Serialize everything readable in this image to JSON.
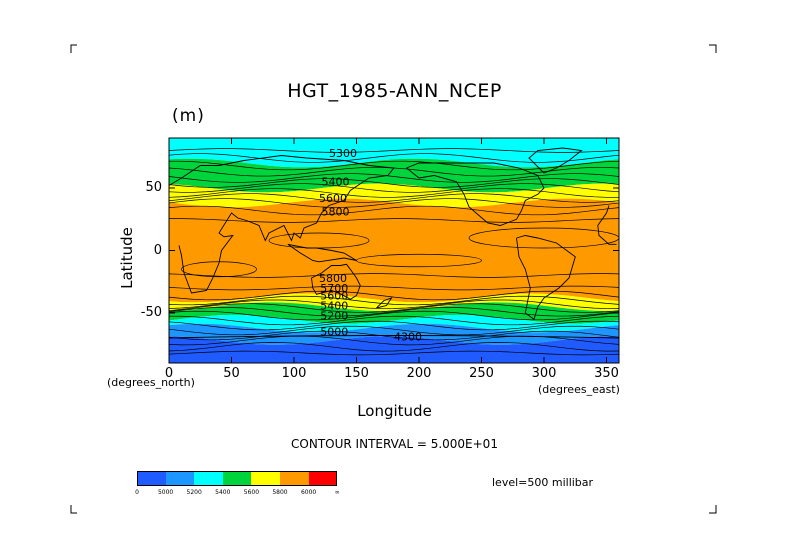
{
  "chart_data": {
    "type": "heatmap",
    "title": "HGT_1985-ANN_NCEP",
    "units": "(m)",
    "xlabel": "Longitude",
    "ylabel": "Latitude",
    "x_unit_note": "(degrees_east)",
    "y_unit_note": "(degrees_north)",
    "xlim": [
      0,
      360
    ],
    "ylim": [
      -90,
      90
    ],
    "x_ticks": [
      0,
      50,
      100,
      150,
      200,
      250,
      300,
      350
    ],
    "y_ticks": [
      50,
      0,
      -50
    ],
    "contour_interval_text": "CONTOUR INTERVAL = 5.000E+01",
    "level_text": "level=500 millibar",
    "colorbar": {
      "colors": [
        "#1f5bff",
        "#1e96ff",
        "#00ffff",
        "#00d43c",
        "#ffff00",
        "#ff9900",
        "#ff0000"
      ],
      "labels": [
        "0",
        "5000",
        "5200",
        "5400",
        "5600",
        "5800",
        "6000",
        "∞"
      ]
    },
    "bands": [
      {
        "lat_top": 90,
        "lat_bottom": 70,
        "color": "#00ffff"
      },
      {
        "lat_top": 70,
        "lat_bottom": 50,
        "color": "#00d43c"
      },
      {
        "lat_top": 50,
        "lat_bottom": 38,
        "color": "#ffff00"
      },
      {
        "lat_top": 38,
        "lat_bottom": -38,
        "color": "#ff9900"
      },
      {
        "lat_top": -38,
        "lat_bottom": -45,
        "color": "#ffff00"
      },
      {
        "lat_top": -45,
        "lat_bottom": -55,
        "color": "#00d43c"
      },
      {
        "lat_top": -55,
        "lat_bottom": -62,
        "color": "#00ffff"
      },
      {
        "lat_top": -62,
        "lat_bottom": -72,
        "color": "#1e96ff"
      },
      {
        "lat_top": -72,
        "lat_bottom": -90,
        "color": "#1f5bff"
      }
    ],
    "contour_labels": [
      {
        "text": "5300",
        "lon": 128,
        "lat": 75
      },
      {
        "text": "5400",
        "lon": 122,
        "lat": 52
      },
      {
        "text": "5600",
        "lon": 120,
        "lat": 39
      },
      {
        "text": "5800",
        "lon": 122,
        "lat": 28
      },
      {
        "text": "5800",
        "lon": 120,
        "lat": -25
      },
      {
        "text": "5700",
        "lon": 121,
        "lat": -33
      },
      {
        "text": "5600",
        "lon": 121,
        "lat": -39
      },
      {
        "text": "5400",
        "lon": 121,
        "lat": -47
      },
      {
        "text": "5200",
        "lon": 121,
        "lat": -55
      },
      {
        "text": "5000",
        "lon": 121,
        "lat": -68
      },
      {
        "text": "4300",
        "lon": 180,
        "lat": -72
      }
    ]
  }
}
